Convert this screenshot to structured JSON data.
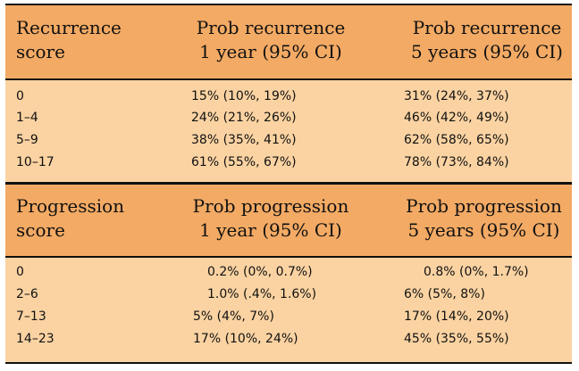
{
  "recurrence": {
    "headers": {
      "score": [
        "Recurrence",
        "score"
      ],
      "one_year": [
        "Prob recurrence",
        "1 year (95% CI)"
      ],
      "five_year": [
        "Prob recurrence",
        "5 years (95% CI)"
      ]
    },
    "rows": [
      {
        "score": "0",
        "one_year": "15% (10%, 19%)",
        "five_year": "31% (24%, 37%)"
      },
      {
        "score": "1–4",
        "one_year": "24% (21%, 26%)",
        "five_year": "46% (42%, 49%)"
      },
      {
        "score": "5–9",
        "one_year": "38% (35%, 41%)",
        "five_year": "62% (58%, 65%)"
      },
      {
        "score": "10–17",
        "one_year": "61% (55%, 67%)",
        "five_year": "78% (73%, 84%)"
      }
    ]
  },
  "progression": {
    "headers": {
      "score": [
        "Progression",
        "score"
      ],
      "one_year": [
        "Prob progression",
        "1 year (95% CI)"
      ],
      "five_year": [
        "Prob progression",
        "5 years (95% CI)"
      ]
    },
    "rows": [
      {
        "score": "0",
        "one_year": "0.2% (0%, 0.7%)",
        "five_year": "0.8% (0%, 1.7%)"
      },
      {
        "score": "2–6",
        "one_year": "1.0% (.4%, 1.6%)",
        "five_year": "6% (5%, 8%)"
      },
      {
        "score": "7–13",
        "one_year": "5% (4%, 7%)",
        "five_year": "17% (14%, 20%)"
      },
      {
        "score": "14–23",
        "one_year": "17% (10%, 24%)",
        "five_year": "45% (35%, 55%)"
      }
    ]
  }
}
